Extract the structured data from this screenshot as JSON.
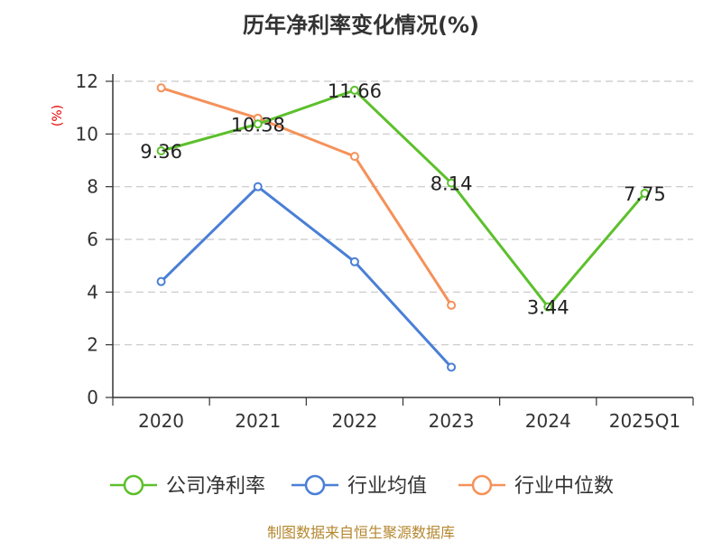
{
  "chart_data": {
    "type": "line",
    "title": "历年净利率变化情况(%)",
    "ylabel": "(%)",
    "categories": [
      "2020",
      "2021",
      "2022",
      "2023",
      "2024",
      "2025Q1"
    ],
    "ylim": [
      0,
      12
    ],
    "yticks": [
      "0",
      "2",
      "4",
      "6",
      "8",
      "10",
      "12"
    ],
    "grid": true,
    "legend_position": "bottom",
    "series": [
      {
        "name": "公司净利率",
        "color": "#5cc02c",
        "values": [
          9.36,
          10.38,
          11.66,
          8.14,
          3.44,
          7.75
        ],
        "labels": [
          "9.36",
          "10.38",
          "11.66",
          "8.14",
          "3.44",
          "7.75"
        ]
      },
      {
        "name": "行业均值",
        "color": "#4a7fd6",
        "values": [
          4.4,
          8.0,
          5.15,
          1.15,
          null,
          null
        ]
      },
      {
        "name": "行业中位数",
        "color": "#f5915a",
        "values": [
          11.75,
          10.6,
          9.15,
          3.5,
          null,
          null
        ]
      }
    ]
  },
  "source": "制图数据来自恒生聚源数据库"
}
